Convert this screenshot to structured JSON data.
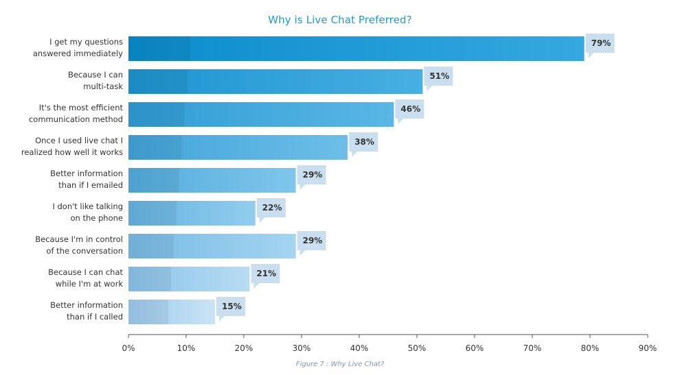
{
  "chart_data": {
    "type": "bar",
    "orientation": "horizontal",
    "title": "Why is Live Chat Preferred?",
    "caption": "Figure 7 : Why Live Chat?",
    "categories": [
      [
        "I get my questions",
        "answered immediately"
      ],
      [
        "Because I can",
        "multi-task"
      ],
      [
        "It's the most efficient",
        "communication method"
      ],
      [
        "Once I used live chat I",
        "realized how well it works"
      ],
      [
        "Better information",
        "than if I emailed"
      ],
      [
        "I don't like talking",
        "on the phone"
      ],
      [
        "Because I'm in control",
        "of the conversation"
      ],
      [
        "Because I can chat",
        "while I'm at work"
      ],
      [
        "Better information",
        "than if I called"
      ]
    ],
    "values": [
      79,
      51,
      46,
      38,
      29,
      22,
      29,
      21,
      15
    ],
    "value_labels": [
      "79%",
      "51%",
      "46%",
      "38%",
      "29%",
      "22%",
      "29%",
      "21%",
      "15%"
    ],
    "xlim": [
      0,
      90
    ],
    "xticks": [
      0,
      10,
      20,
      30,
      40,
      50,
      60,
      70,
      80,
      90
    ],
    "xtick_labels": [
      "0%",
      "10%",
      "20%",
      "30%",
      "40%",
      "50%",
      "60%",
      "70%",
      "80%",
      "90%"
    ],
    "xlabel": "",
    "ylabel": "",
    "grid": false,
    "legend": "none",
    "colors": {
      "title": "#1a9bd2",
      "bar_gradient_dark": [
        "#0a8ccc",
        "#9ccbee"
      ],
      "bar_gradient_light": [
        "#35a8e0",
        "#c9e3f5"
      ],
      "label_box": "#c9dff0",
      "axis": "#555555"
    }
  }
}
